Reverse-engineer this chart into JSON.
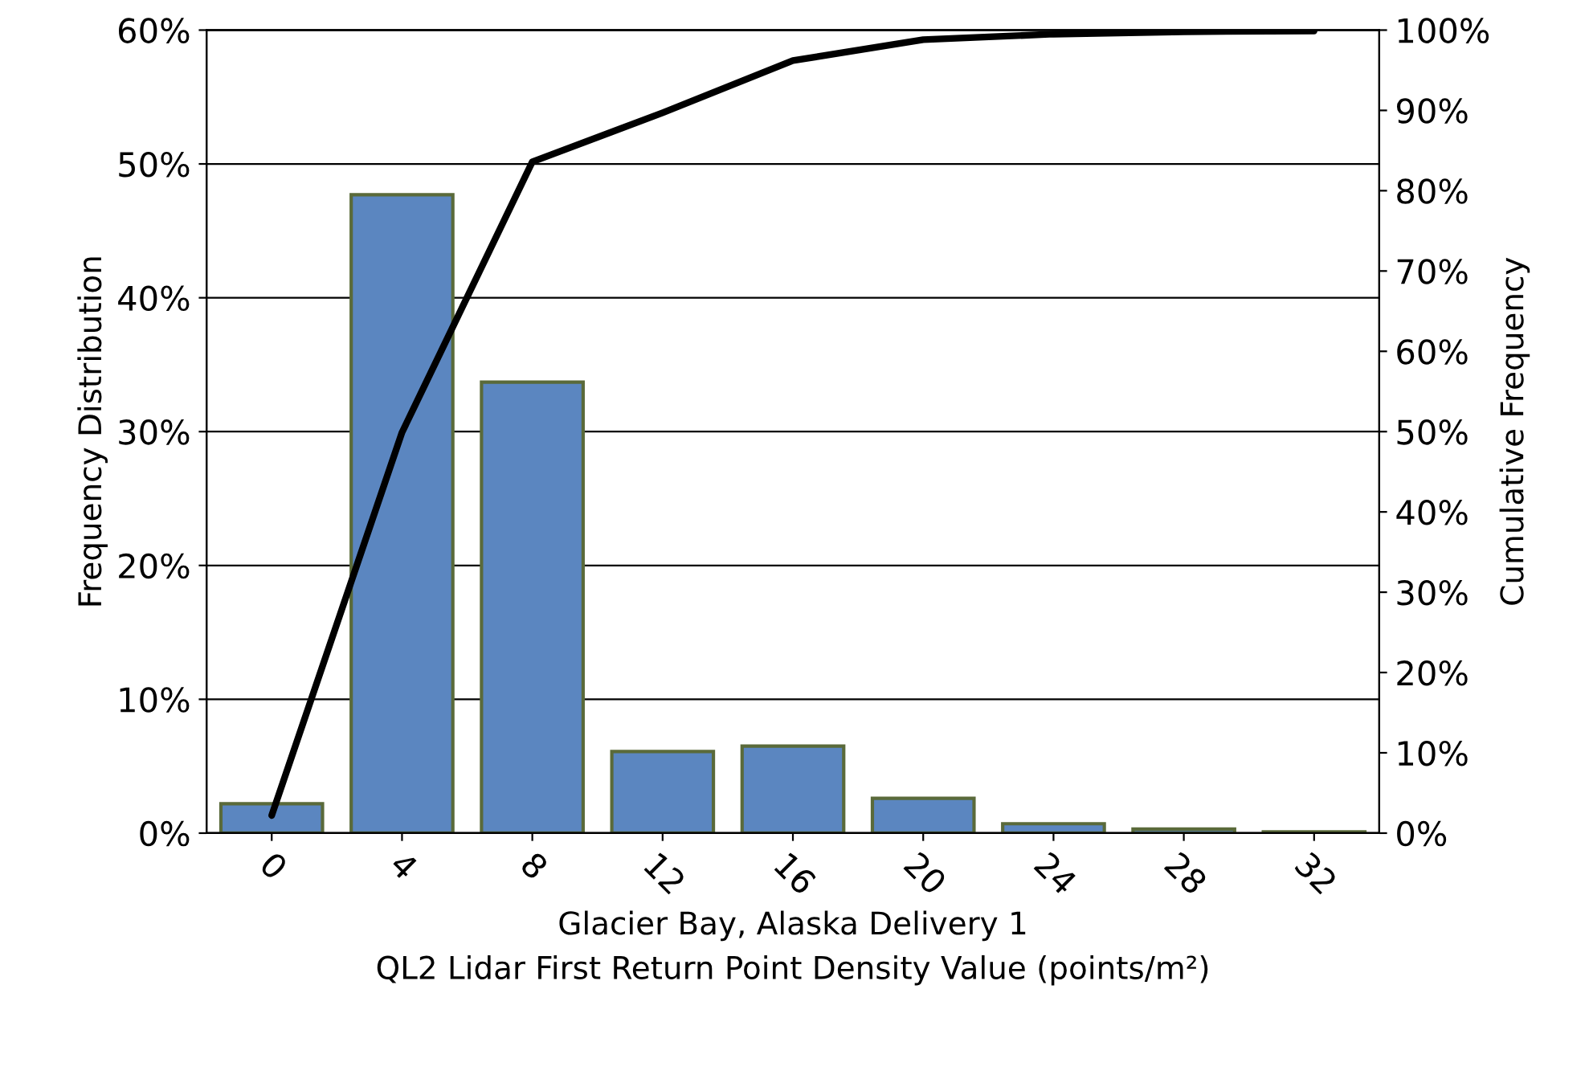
{
  "chart_data": {
    "type": "bar",
    "xlabel": "Glacier Bay, Alaska Delivery 1\nQL2 Lidar First Return Point Density Value (points/m²)",
    "ylabel": "Frequency Distribution",
    "y2label": "Cumulative Frequency",
    "categories": [
      "0",
      "4",
      "8",
      "12",
      "16",
      "20",
      "24",
      "28",
      "32"
    ],
    "series": [
      {
        "color": "#5b86c0",
        "values": [
          2.2,
          47.7,
          33.7,
          6.1,
          6.5,
          2.6,
          0.7,
          0.3,
          0.1
        ]
      },
      {
        "type": "line",
        "axis": "y2",
        "color": "#000000",
        "values": [
          2.2,
          49.9,
          83.6,
          89.7,
          96.2,
          98.8,
          99.5,
          99.8,
          99.9
        ]
      }
    ],
    "ylim": [
      0,
      60
    ],
    "yticks": [
      {
        "value": 0,
        "label": "0%"
      },
      {
        "value": 10,
        "label": "10%"
      },
      {
        "value": 20,
        "label": "20%"
      },
      {
        "value": 30,
        "label": "30%"
      },
      {
        "value": 40,
        "label": "40%"
      },
      {
        "value": 50,
        "label": "50%"
      },
      {
        "value": 60,
        "label": "60%"
      }
    ],
    "y2lim": [
      0,
      100
    ],
    "y2ticks": [
      {
        "value": 0,
        "label": "0%"
      },
      {
        "value": 10,
        "label": "10%"
      },
      {
        "value": 20,
        "label": "20%"
      },
      {
        "value": 30,
        "label": "30%"
      },
      {
        "value": 40,
        "label": "40%"
      },
      {
        "value": 50,
        "label": "50%"
      },
      {
        "value": 60,
        "label": "60%"
      },
      {
        "value": 70,
        "label": "70%"
      },
      {
        "value": 80,
        "label": "80%"
      },
      {
        "value": 90,
        "label": "90%"
      },
      {
        "value": 100,
        "label": "100%"
      }
    ],
    "grid": "y",
    "marker": "none",
    "line_style": "solid"
  }
}
